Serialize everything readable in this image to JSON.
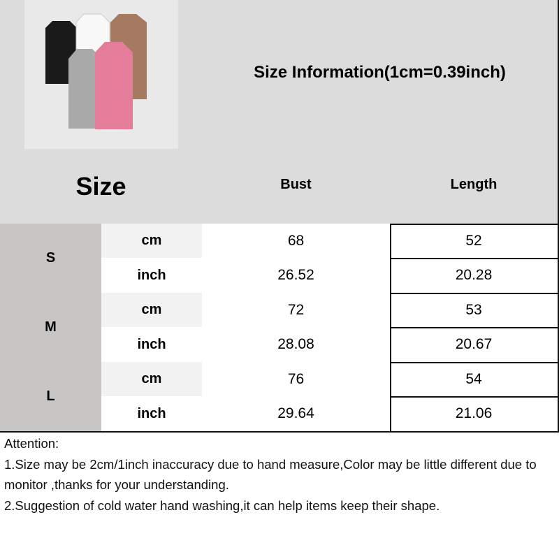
{
  "title": "Size Information(1cm=0.39inch)",
  "header": {
    "size": "Size",
    "bust": "Bust",
    "length": "Length"
  },
  "rows": [
    {
      "size": "S",
      "cm": {
        "unit": "cm",
        "bust": "68",
        "length": "52"
      },
      "inch": {
        "unit": "inch",
        "bust": "26.52",
        "length": "20.28"
      }
    },
    {
      "size": "M",
      "cm": {
        "unit": "cm",
        "bust": "72",
        "length": "53"
      },
      "inch": {
        "unit": "inch",
        "bust": "28.08",
        "length": "20.67"
      }
    },
    {
      "size": "L",
      "cm": {
        "unit": "cm",
        "bust": "76",
        "length": "54"
      },
      "inch": {
        "unit": "inch",
        "bust": "29.64",
        "length": "21.06"
      }
    }
  ],
  "attention": [
    "Attention:",
    "1.Size may be 2cm/1inch inaccuracy due to hand measure,Color may be little different due to monitor ,thanks for your understanding.",
    "2.Suggestion of cold water hand washing,it can help items keep their shape."
  ],
  "product_colors": [
    "#1a1a1a",
    "#f5f5f5",
    "#a57a60",
    "#a9a9a9",
    "#e47d9a"
  ]
}
